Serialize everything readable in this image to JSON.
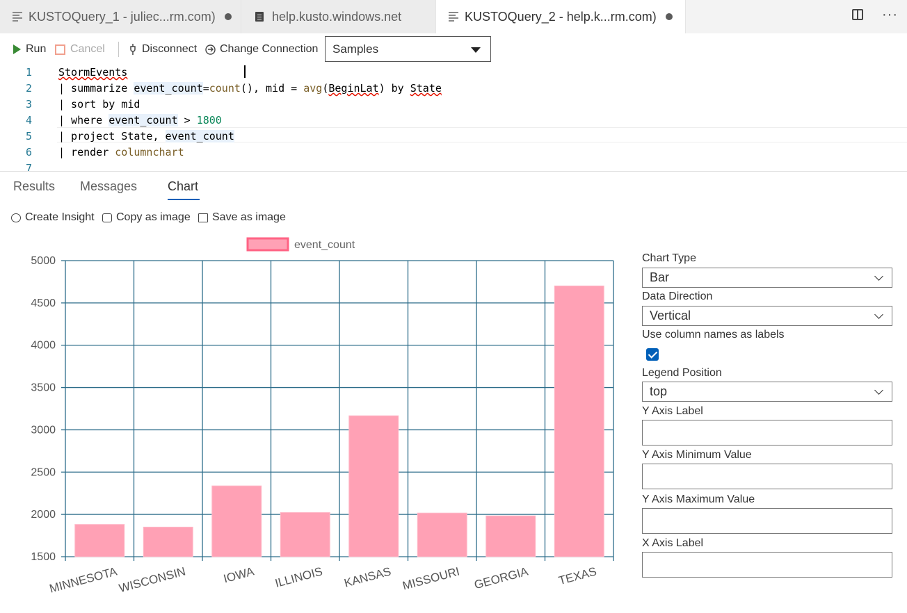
{
  "tabs": [
    {
      "label": "KUSTOQuery_1 - juliec...rm.com)",
      "dirty": true
    },
    {
      "label": "help.kusto.windows.net",
      "dirty": false
    },
    {
      "label": "KUSTOQuery_2 - help.k...rm.com)",
      "dirty": true,
      "active": true
    }
  ],
  "toolbar": {
    "run_label": "Run",
    "cancel_label": "Cancel",
    "disconnect_label": "Disconnect",
    "change_connection_label": "Change Connection",
    "database": "Samples"
  },
  "editor": {
    "line_numbers": [
      "1",
      "2",
      "3",
      "4",
      "5",
      "6",
      "7"
    ],
    "lines": [
      "StormEvents",
      "| summarize event_count=count(), mid = avg(BeginLat) by State",
      "| sort by mid",
      "| where event_count > 1800",
      "| project State, event_count",
      "| render columnchart",
      ""
    ]
  },
  "results_tabs": [
    "Results",
    "Messages",
    "Chart"
  ],
  "active_results_tab": "Chart",
  "actions": [
    "Create Insight",
    "Copy as image",
    "Save as image"
  ],
  "chart_data": {
    "type": "bar",
    "categories": [
      "MINNESOTA",
      "WISCONSIN",
      "IOWA",
      "ILLINOIS",
      "KANSAS",
      "MISSOURI",
      "GEORGIA",
      "TEXAS"
    ],
    "series": [
      {
        "name": "event_count",
        "values": [
          1881,
          1850,
          2337,
          2022,
          3166,
          2016,
          1983,
          4701
        ],
        "color": "#ffa1b5",
        "border": "#ff6384"
      }
    ],
    "ylim": [
      1500,
      5000
    ],
    "yticks": [
      "5000",
      "4500",
      "4000",
      "3500",
      "3000",
      "2500",
      "2000",
      "1500"
    ],
    "grid": true,
    "gridColor": "#2d6d8a",
    "legend": "top"
  },
  "settings": {
    "chart_type_label": "Chart Type",
    "chart_type_value": "Bar",
    "data_direction_label": "Data Direction",
    "data_direction_value": "Vertical",
    "column_names_label": "Use column names as labels",
    "column_names_checked": true,
    "legend_position_label": "Legend Position",
    "legend_position_value": "top",
    "y_axis_label_label": "Y Axis Label",
    "y_axis_label_value": "",
    "y_min_label": "Y Axis Minimum Value",
    "y_min_value": "",
    "y_max_label": "Y Axis Maximum Value",
    "y_max_value": "",
    "x_axis_label_label": "X Axis Label",
    "x_axis_label_value": ""
  }
}
